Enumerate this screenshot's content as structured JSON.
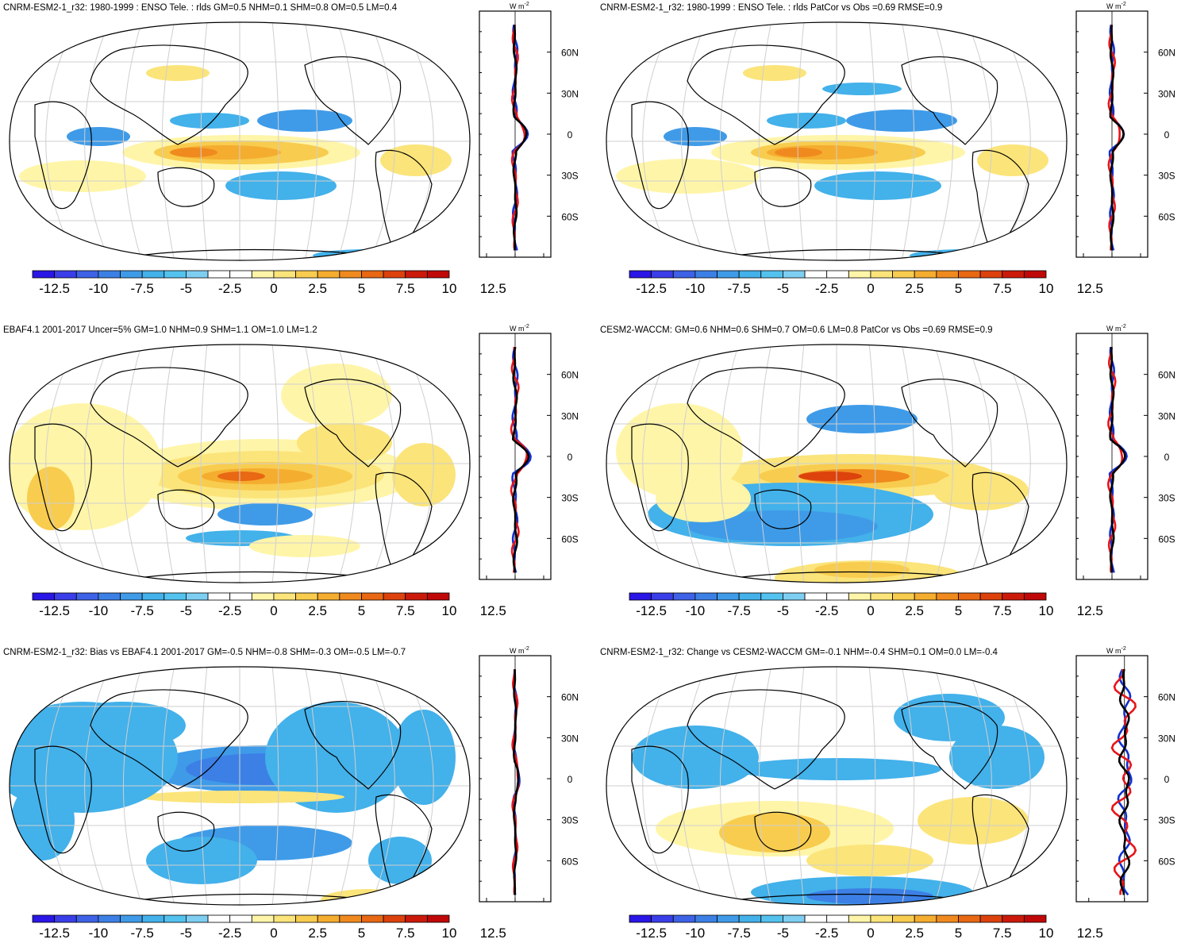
{
  "colorbar": {
    "colors": [
      "#2a16e6",
      "#3a3ee8",
      "#3e62e6",
      "#3c80e6",
      "#3f9be8",
      "#43b1ea",
      "#54c2ef",
      "#7ecef2",
      "#ffffff",
      "#ffffff",
      "#fff5a8",
      "#fbe47a",
      "#f8cc4e",
      "#f5ad2f",
      "#f08a1e",
      "#e86813",
      "#dd420d",
      "#cc1a0a",
      "#c00808"
    ],
    "labels": [
      "-12.5",
      "-10",
      "-7.5",
      "-5",
      "-2.5",
      "0",
      "2.5",
      "5",
      "7.5",
      "10",
      "12.5"
    ]
  },
  "panels": [
    {
      "title": "CNRM-ESM2-1_r32: 1980-1999 : ENSO Tele. : rlds GM=0.5 NHM=0.1 SHM=0.8 OM=0.5 LM=0.4",
      "profile": {
        "unit_main": "W m",
        "unit_sup": "-2",
        "xticks": [
          "-8",
          "0",
          "8"
        ],
        "xrange": [
          -10,
          10
        ],
        "lat_labels": [
          "60N",
          "30N",
          "0",
          "30S",
          "60S"
        ]
      }
    },
    {
      "title": "CNRM-ESM2-1_r32: 1980-1999 : ENSO Tele. : rlds PatCor vs Obs =0.69 RMSE=0.9",
      "profile": {
        "unit_main": "W m",
        "unit_sup": "-2",
        "xticks": [
          "-8",
          "0",
          "8"
        ],
        "xrange": [
          -10,
          10
        ],
        "lat_labels": [
          "60N",
          "30N",
          "0",
          "30S",
          "60S"
        ]
      }
    },
    {
      "title": "EBAF4.1 2001-2017 Uncer=5% GM=1.0 NHM=0.9 SHM=1.1 OM=1.0 LM=1.2",
      "profile": {
        "unit_main": "W m",
        "unit_sup": "-2",
        "xticks": [
          "-8",
          "0",
          "8"
        ],
        "xrange": [
          -10,
          10
        ],
        "lat_labels": [
          "60N",
          "30N",
          "0",
          "30S",
          "60S"
        ]
      }
    },
    {
      "title": "CESM2-WACCM: GM=0.6 NHM=0.6 SHM=0.7 OM=0.6 LM=0.8 PatCor vs Obs =0.69 RMSE=0.9",
      "profile": {
        "unit_main": "W m",
        "unit_sup": "-2",
        "xticks": [
          "-8",
          "0",
          "8"
        ],
        "xrange": [
          -10,
          10
        ],
        "lat_labels": [
          "60N",
          "30N",
          "0",
          "30S",
          "60S"
        ]
      }
    },
    {
      "title": "CNRM-ESM2-1_r32: Bias vs EBAF4.1 2001-2017 GM=-0.5 NHM=-0.8 SHM=-0.3 OM=-0.5 LM=-0.7",
      "profile": {
        "unit_main": "W m",
        "unit_sup": "-2",
        "xticks": [
          "-8",
          "0",
          "8"
        ],
        "xrange": [
          -10,
          10
        ],
        "lat_labels": [
          "60N",
          "30N",
          "0",
          "30S",
          "60S"
        ]
      }
    },
    {
      "title": "CNRM-ESM2-1_r32: Change vs CESM2-WACCM GM=-0.1 NHM=-0.4 SHM=0.1 OM=0.0 LM=-0.4",
      "profile": {
        "unit_main": "W m",
        "unit_sup": "-2",
        "xticks": [
          "-2.0",
          "0.0"
        ],
        "xrange": [
          -2.7,
          1.3
        ],
        "lat_labels": [
          "60N",
          "30N",
          "0",
          "30S",
          "60S"
        ]
      }
    }
  ]
}
